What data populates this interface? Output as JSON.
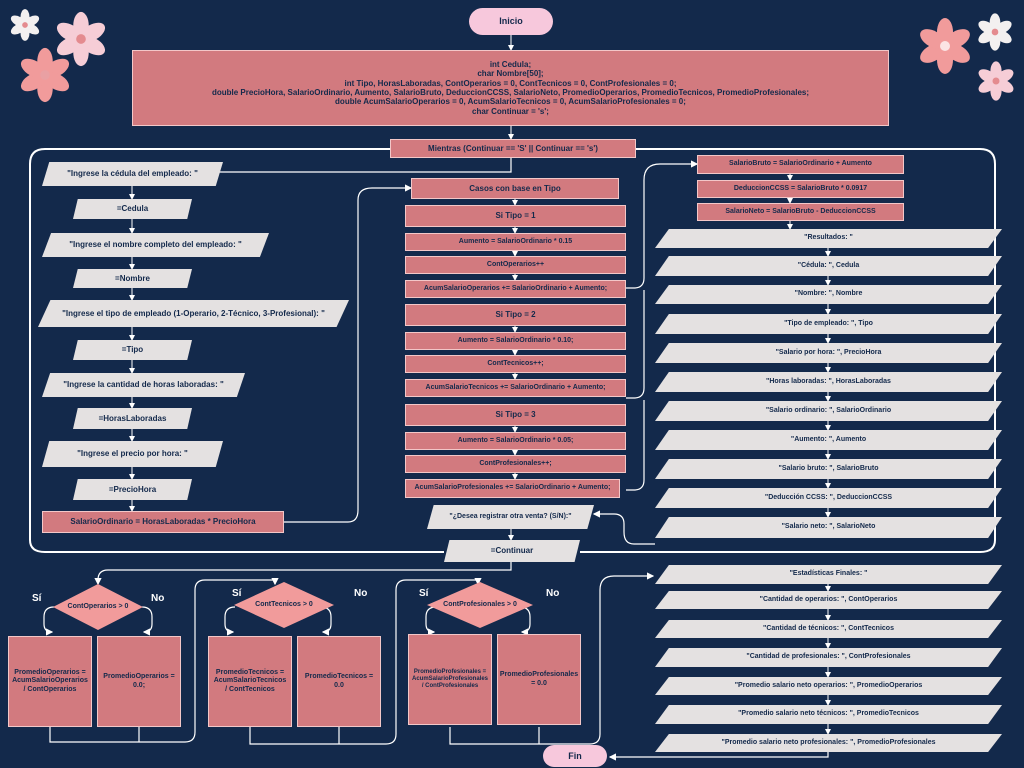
{
  "diagram": {
    "start": "Inicio",
    "end": "Fin",
    "declarations": "int Cedula;\nchar Nombre[50];\nint Tipo, HorasLaboradas, ContOperarios = 0, ContTecnicos = 0, ContProfesionales = 0;\ndouble PrecioHora, SalarioOrdinario, Aumento, SalarioBruto, DeduccionCCSS, SalarioNeto, PromedioOperarios, PromedioTecnicos, PromedioProfesionales;\ndouble AcumSalarioOperarios = 0, AcumSalarioTecnicos = 0, AcumSalarioProfesionales = 0;\nchar Continuar = 's';",
    "while": "Mientras (Continuar == 'S' || Continuar == 's')",
    "input_steps": [
      "\"Ingrese la cédula del empleado: \"",
      "=Cedula",
      "\"Ingrese el nombre completo del empleado: \"",
      "=Nombre",
      "\"Ingrese el tipo de empleado (1-Operario, 2-Técnico, 3-Profesional): \"",
      "=Tipo",
      "\"Ingrese la cantidad de horas laboradas: \"",
      "=HorasLaboradas",
      "\"Ingrese el precio por hora: \"",
      "=PrecioHora"
    ],
    "salario_ordinario": "SalarioOrdinario = HorasLaboradas * PrecioHora",
    "cases_title": "Casos con base en Tipo",
    "cases": [
      "Si Tipo = 1",
      "Aumento = SalarioOrdinario * 0.15",
      "ContOperarios++",
      "AcumSalarioOperarios += SalarioOrdinario + Aumento;",
      "Si Tipo = 2",
      "Aumento = SalarioOrdinario * 0.10;",
      "ContTecnicos++;",
      "AcumSalarioTecnicos += SalarioOrdinario + Aumento;",
      "Si Tipo = 3",
      "Aumento = SalarioOrdinario * 0.05;",
      "ContProfesionales++;",
      "AcumSalarioProfesionales += SalarioOrdinario + Aumento;"
    ],
    "ask_continue": "\"¿Desea registrar otra venta? (S/N):\"",
    "continue_input": "=Continuar",
    "calc": [
      "SalarioBruto = SalarioOrdinario + Aumento",
      "DeduccionCCSS = SalarioBruto * 0.0917",
      "SalarioNeto = SalarioBruto - DeduccionCCSS"
    ],
    "results": [
      "\"Resultados: \"",
      "\"Cédula: \", Cedula",
      "\"Nombre: \", Nombre",
      "\"Tipo de empleado: \", Tipo",
      "\"Salario por hora: \", PrecioHora",
      "\"Horas laboradas: \", HorasLaboradas",
      "\"Salario ordinario: \", SalarioOrdinario",
      "\"Aumento: \", Aumento",
      "\"Salario bruto: \", SalarioBruto",
      "\"Deducción CCSS: \", DeduccionCCSS",
      "\"Salario neto: \", SalarioNeto"
    ],
    "decisions": [
      {
        "cond": "ContOperarios > 0",
        "yes": "Sí",
        "no": "No",
        "yes_box": "PromedioOperarios = AcumSalarioOperarios / ContOperarios",
        "no_box": "PromedioOperarios = 0.0;"
      },
      {
        "cond": "ContTecnicos > 0",
        "yes": "Sí",
        "no": "No",
        "yes_box": "PromedioTecnicos = AcumSalarioTecnicos / ContTecnicos",
        "no_box": "PromedioTecnicos = 0.0"
      },
      {
        "cond": "ContProfesionales > 0",
        "yes": "Sí",
        "no": "No",
        "yes_box": "PromedioProfesionales = AcumSalarioProfesionales / ContProfesionales",
        "no_box": "PromedioProfesionales = 0.0"
      }
    ],
    "final_stats": [
      "\"Estadísticas Finales: \"",
      "\"Cantidad de operarios: \", ContOperarios",
      "\"Cantidad de técnicos: \", ContTecnicos",
      "\"Cantidad de profesionales: \", ContProfesionales",
      "\"Promedio salario neto operarios: \", PromedioOperarios",
      "\"Promedio salario neto técnicos: \", PromedioTecnicos",
      "\"Promedio salario neto profesionales: \", PromedioProfesionales"
    ]
  },
  "colors": {
    "background": "#13294b",
    "process": "#d27a7f",
    "terminal": "#f7c8dc",
    "io": "#e4e1e1",
    "decision": "#f19b9b",
    "connector": "#ffffff"
  }
}
